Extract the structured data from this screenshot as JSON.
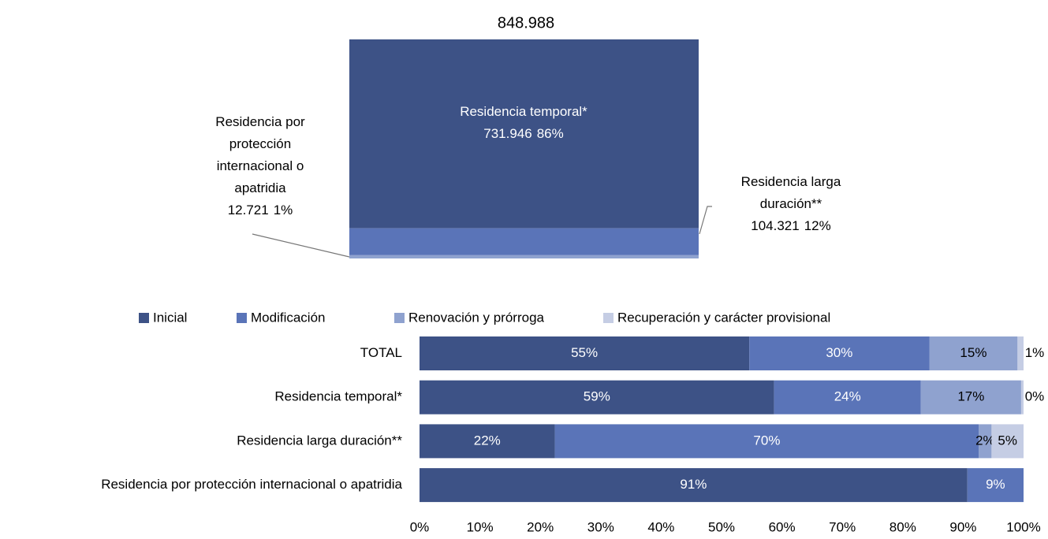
{
  "chart_data": [
    {
      "type": "stacked_column",
      "total": 848988,
      "total_label": "848.988",
      "categories": [
        "Residencia temporal*",
        "Residencia larga duración**",
        "Residencia por protección internacional o apatridia"
      ],
      "values": [
        731946,
        104321,
        12721
      ],
      "value_labels": [
        "731.946",
        "104.321",
        "12.721"
      ],
      "percents": [
        86,
        12,
        1
      ],
      "percent_labels": [
        "86%",
        "12%",
        "1%"
      ],
      "colors": [
        "#3d5286",
        "#5a74b8",
        "#8fa2cf"
      ]
    },
    {
      "type": "stacked_bar",
      "categories": [
        "TOTAL",
        "Residencia temporal*",
        "Residencia larga duración**",
        "Residencia por protección internacional o apatridia"
      ],
      "series": [
        {
          "name": "Inicial",
          "color": "#3d5286",
          "values": [
            54.6,
            58.7,
            22.4,
            90.7
          ],
          "value_labels": [
            "55%",
            "59%",
            "22%",
            "91%"
          ]
        },
        {
          "name": "Modificación",
          "color": "#5a74b8",
          "values": [
            29.8,
            24.3,
            70.2,
            9.3
          ],
          "value_labels": [
            "30%",
            "24%",
            "70%",
            "9%"
          ]
        },
        {
          "name": "Renovación y prórroga",
          "color": "#8fa2cf",
          "values": [
            14.6,
            16.6,
            2.1,
            null
          ],
          "value_labels": [
            "15%",
            "17%",
            "2%",
            null
          ]
        },
        {
          "name": "Recuperación y carácter provisional",
          "color": "#c5cde4",
          "values": [
            1.0,
            0.4,
            5.3,
            null
          ],
          "value_labels": [
            "1%",
            "0%",
            "5%",
            null
          ]
        }
      ],
      "xlim": [
        0,
        100
      ],
      "xticks": [
        {
          "value": 0,
          "label": "0%"
        },
        {
          "value": 10,
          "label": "10%"
        },
        {
          "value": 20,
          "label": "20%"
        },
        {
          "value": 30,
          "label": "30%"
        },
        {
          "value": 40,
          "label": "40%"
        },
        {
          "value": 50,
          "label": "50%"
        },
        {
          "value": 60,
          "label": "60%"
        },
        {
          "value": 70,
          "label": "70%"
        },
        {
          "value": 80,
          "label": "80%"
        },
        {
          "value": 90,
          "label": "90%"
        },
        {
          "value": 100,
          "label": "100%"
        }
      ],
      "legend": "top"
    }
  ]
}
